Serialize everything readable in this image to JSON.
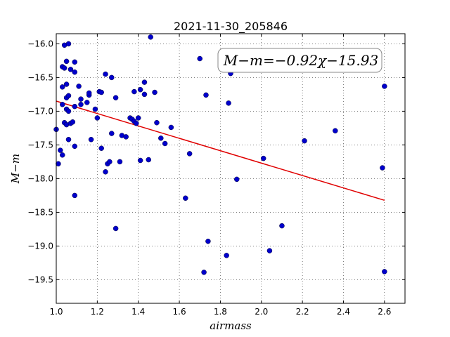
{
  "chart_data": {
    "type": "scatter",
    "title": "2021-11-30_205846",
    "xlabel": "airmass",
    "ylabel": "M−m",
    "xlim": [
      1.0,
      2.7
    ],
    "ylim": [
      -19.85,
      -15.85
    ],
    "y_inverted": true,
    "xticks": [
      1.0,
      1.2,
      1.4,
      1.6,
      1.8,
      2.0,
      2.2,
      2.4,
      2.6
    ],
    "xtick_labels": [
      "1.0",
      "1.2",
      "1.4",
      "1.6",
      "1.8",
      "2.0",
      "2.2",
      "2.4",
      "2.6"
    ],
    "yticks": [
      -16.0,
      -16.5,
      -17.0,
      -17.5,
      -18.0,
      -18.5,
      -19.0,
      -19.5
    ],
    "ytick_labels": [
      "−16.0",
      "−16.5",
      "−17.0",
      "−17.5",
      "−18.0",
      "−18.5",
      "−19.0",
      "−19.5"
    ],
    "grid": true,
    "annotation": "M−m=−0.92χ−15.93",
    "colors": {
      "points": "#0000cc",
      "fit": "#e00000"
    },
    "fit": {
      "slope": -0.92,
      "intercept": -15.93,
      "x": [
        1.0,
        2.6
      ]
    },
    "points": [
      [
        1.0,
        -17.27
      ],
      [
        1.01,
        -17.78
      ],
      [
        1.02,
        -17.58
      ],
      [
        1.03,
        -17.65
      ],
      [
        1.03,
        -16.9
      ],
      [
        1.03,
        -16.64
      ],
      [
        1.03,
        -16.34
      ],
      [
        1.04,
        -16.36
      ],
      [
        1.04,
        -16.02
      ],
      [
        1.05,
        -16.26
      ],
      [
        1.06,
        -16.0
      ],
      [
        1.05,
        -16.6
      ],
      [
        1.05,
        -16.8
      ],
      [
        1.05,
        -16.97
      ],
      [
        1.04,
        -17.17
      ],
      [
        1.05,
        -17.2
      ],
      [
        1.06,
        -17.42
      ],
      [
        1.06,
        -16.77
      ],
      [
        1.07,
        -16.38
      ],
      [
        1.06,
        -17.0
      ],
      [
        1.07,
        -17.18
      ],
      [
        1.08,
        -17.16
      ],
      [
        1.09,
        -16.93
      ],
      [
        1.09,
        -16.27
      ],
      [
        1.09,
        -16.42
      ],
      [
        1.09,
        -17.52
      ],
      [
        1.09,
        -18.25
      ],
      [
        1.11,
        -16.63
      ],
      [
        1.12,
        -16.82
      ],
      [
        1.12,
        -16.9
      ],
      [
        1.15,
        -16.87
      ],
      [
        1.16,
        -16.76
      ],
      [
        1.16,
        -16.73
      ],
      [
        1.17,
        -17.42
      ],
      [
        1.19,
        -16.97
      ],
      [
        1.2,
        -17.1
      ],
      [
        1.21,
        -16.71
      ],
      [
        1.22,
        -16.72
      ],
      [
        1.22,
        -17.55
      ],
      [
        1.24,
        -16.45
      ],
      [
        1.24,
        -17.9
      ],
      [
        1.25,
        -17.78
      ],
      [
        1.26,
        -17.75
      ],
      [
        1.27,
        -16.5
      ],
      [
        1.27,
        -17.33
      ],
      [
        1.29,
        -16.8
      ],
      [
        1.29,
        -18.74
      ],
      [
        1.31,
        -17.75
      ],
      [
        1.32,
        -17.36
      ],
      [
        1.34,
        -17.38
      ],
      [
        1.36,
        -17.1
      ],
      [
        1.37,
        -17.12
      ],
      [
        1.38,
        -16.71
      ],
      [
        1.38,
        -17.15
      ],
      [
        1.39,
        -17.18
      ],
      [
        1.4,
        -17.1
      ],
      [
        1.41,
        -16.68
      ],
      [
        1.41,
        -17.73
      ],
      [
        1.43,
        -16.57
      ],
      [
        1.43,
        -16.75
      ],
      [
        1.45,
        -17.72
      ],
      [
        1.46,
        -15.9
      ],
      [
        1.48,
        -16.72
      ],
      [
        1.49,
        -17.17
      ],
      [
        1.51,
        -17.4
      ],
      [
        1.53,
        -17.48
      ],
      [
        1.56,
        -17.24
      ],
      [
        1.63,
        -18.29
      ],
      [
        1.65,
        -17.63
      ],
      [
        1.7,
        -16.22
      ],
      [
        1.72,
        -19.39
      ],
      [
        1.73,
        -16.76
      ],
      [
        1.74,
        -18.93
      ],
      [
        1.83,
        -19.14
      ],
      [
        1.84,
        -16.88
      ],
      [
        1.85,
        -16.44
      ],
      [
        1.88,
        -18.01
      ],
      [
        2.01,
        -17.7
      ],
      [
        2.04,
        -19.07
      ],
      [
        2.1,
        -18.7
      ],
      [
        2.21,
        -17.44
      ],
      [
        2.36,
        -17.29
      ],
      [
        2.59,
        -17.84
      ],
      [
        2.6,
        -19.38
      ],
      [
        2.6,
        -16.63
      ]
    ]
  }
}
